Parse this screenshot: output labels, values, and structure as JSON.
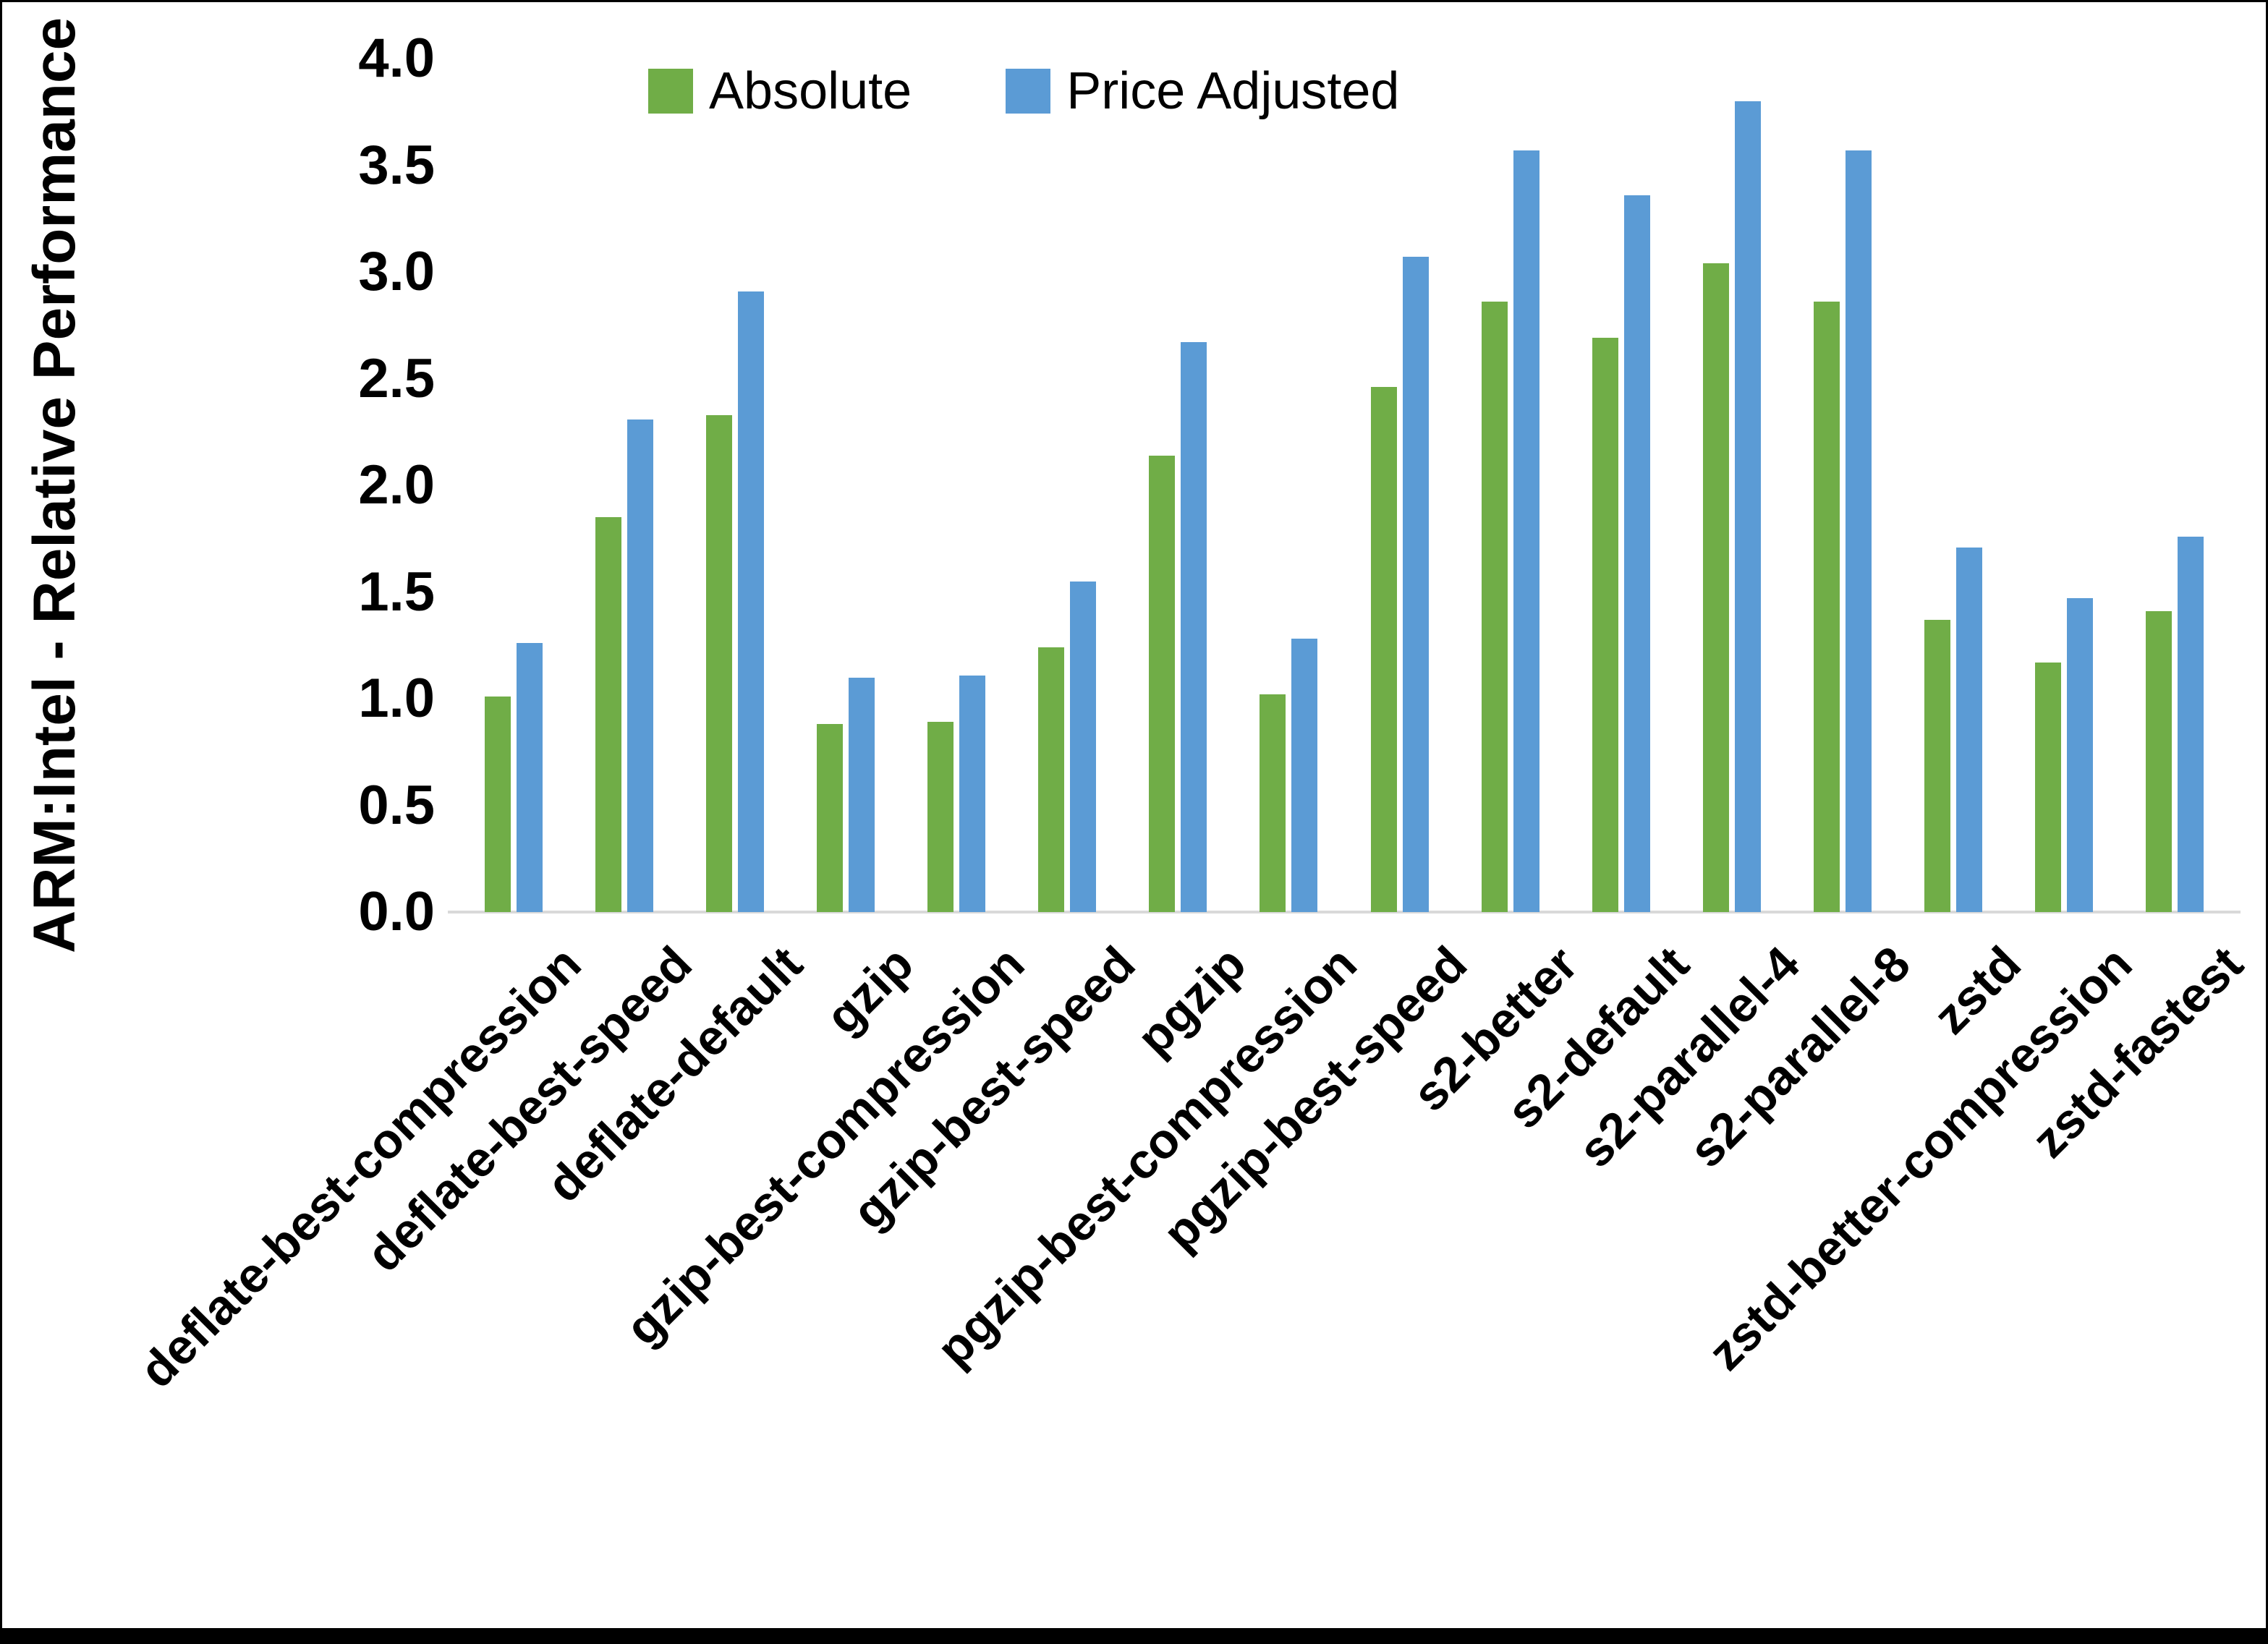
{
  "chart_data": {
    "type": "bar",
    "title": "",
    "xlabel": "",
    "ylabel": "ARM:Intel - Relative Performance",
    "ylim": [
      0.0,
      4.0
    ],
    "ytick_labels": [
      "0.0",
      "0.5",
      "1.0",
      "1.5",
      "2.0",
      "2.5",
      "3.0",
      "3.5",
      "4.0"
    ],
    "grid": false,
    "legend_position": "top-center",
    "categories": [
      "deflate-best-compression",
      "deflate-best-speed",
      "deflate-default",
      "gzip",
      "gzip-best-compression",
      "gzip-best-speed",
      "pgzip",
      "pgzip-best-compression",
      "pgzip-best-speed",
      "s2-better",
      "s2-default",
      "s2-parallel-4",
      "s2-parallel-8",
      "zstd",
      "zstd-better-compression",
      "zstd-fastest"
    ],
    "series": [
      {
        "name": "Absolute",
        "color": "#70AD47",
        "values": [
          1.01,
          1.85,
          2.33,
          0.88,
          0.89,
          1.24,
          2.14,
          1.02,
          2.46,
          2.86,
          2.69,
          3.04,
          2.86,
          1.37,
          1.17,
          1.41
        ]
      },
      {
        "name": "Price Adjusted",
        "color": "#5B9BD5",
        "values": [
          1.26,
          2.31,
          2.91,
          1.1,
          1.11,
          1.55,
          2.67,
          1.28,
          3.07,
          3.57,
          3.36,
          3.8,
          3.57,
          1.71,
          1.47,
          1.76
        ]
      }
    ],
    "colors": {
      "axis_line": "#D9D9D9",
      "text": "#000000",
      "background": "#FFFFFF",
      "frame_border": "#000000"
    }
  }
}
